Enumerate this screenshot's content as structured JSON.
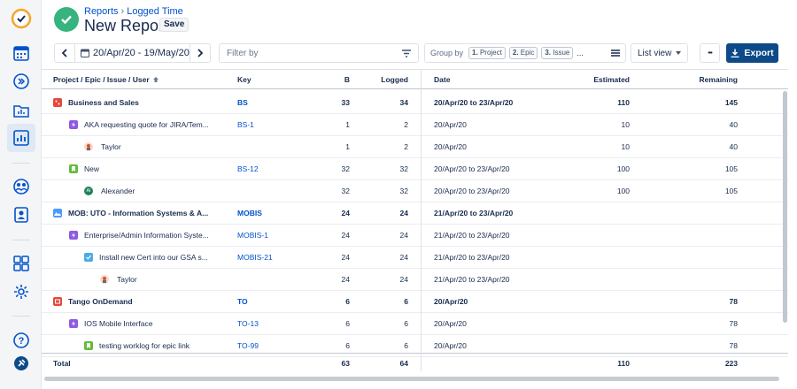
{
  "header": {
    "breadcrumb_root": "Reports",
    "breadcrumb_separator": "›",
    "breadcrumb_current": "Logged Time",
    "title": "New Report",
    "save_label": "Save"
  },
  "toolbar": {
    "date_range": "20/Apr/20 - 19/May/20",
    "filter_placeholder": "Filter by",
    "group_by_label": "Group by",
    "group_chips": [
      {
        "num": "1.",
        "label": "Project"
      },
      {
        "num": "2.",
        "label": "Epic"
      },
      {
        "num": "3.",
        "label": "Issue"
      }
    ],
    "group_more": "...",
    "view_label": "List view",
    "more_label": "•••",
    "export_label": "Export"
  },
  "table": {
    "headers": {
      "name": "Project / Epic / Issue / User",
      "key": "Key",
      "b": "B",
      "logged": "Logged",
      "date": "Date",
      "estimated": "Estimated",
      "remaining": "Remaining"
    },
    "rows": [
      {
        "name": "Business and Sales",
        "key": "BS",
        "b": "33",
        "logged": "34",
        "date": "20/Apr/20 to 23/Apr/20",
        "estimated": "110",
        "remaining": "145"
      },
      {
        "name": "AKA requesting quote for JIRA/Tem...",
        "key": "BS-1",
        "b": "1",
        "logged": "2",
        "date": "20/Apr/20",
        "estimated": "10",
        "remaining": "40"
      },
      {
        "name": "Taylor",
        "key": "",
        "b": "1",
        "logged": "2",
        "date": "20/Apr/20",
        "estimated": "10",
        "remaining": "40"
      },
      {
        "name": "New",
        "key": "BS-12",
        "b": "32",
        "logged": "32",
        "date": "20/Apr/20 to 23/Apr/20",
        "estimated": "100",
        "remaining": "105"
      },
      {
        "name": "Alexander",
        "key": "",
        "b": "32",
        "logged": "32",
        "date": "20/Apr/20 to 23/Apr/20",
        "estimated": "100",
        "remaining": "105"
      },
      {
        "name": "MOB: UTO - Information Systems & A...",
        "key": "MOBIS",
        "b": "24",
        "logged": "24",
        "date": "21/Apr/20 to 23/Apr/20",
        "estimated": "",
        "remaining": ""
      },
      {
        "name": "Enterprise/Admin Information Syste...",
        "key": "MOBIS-1",
        "b": "24",
        "logged": "24",
        "date": "21/Apr/20 to 23/Apr/20",
        "estimated": "",
        "remaining": ""
      },
      {
        "name": "Install new Cert into our GSA s...",
        "key": "MOBIS-21",
        "b": "24",
        "logged": "24",
        "date": "21/Apr/20 to 23/Apr/20",
        "estimated": "",
        "remaining": ""
      },
      {
        "name": "Taylor",
        "key": "",
        "b": "24",
        "logged": "24",
        "date": "21/Apr/20 to 23/Apr/20",
        "estimated": "",
        "remaining": ""
      },
      {
        "name": "Tango OnDemand",
        "key": "TO",
        "b": "6",
        "logged": "6",
        "date": "20/Apr/20",
        "estimated": "",
        "remaining": "78"
      },
      {
        "name": "IOS Mobile Interface",
        "key": "TO-13",
        "b": "6",
        "logged": "6",
        "date": "20/Apr/20",
        "estimated": "",
        "remaining": "78"
      },
      {
        "name": "testing worklog for epic link",
        "key": "TO-99",
        "b": "6",
        "logged": "6",
        "date": "20/Apr/20",
        "estimated": "",
        "remaining": "78"
      }
    ],
    "total": {
      "name": "Total",
      "b": "63",
      "logged": "64",
      "estimated": "110",
      "remaining": "223"
    }
  },
  "colors": {
    "accent": "#0052cc",
    "success": "#36b37e",
    "export": "#0c4a88",
    "epic": "#8f5ae0",
    "story": "#63ba3c",
    "task": "#4bade8"
  }
}
